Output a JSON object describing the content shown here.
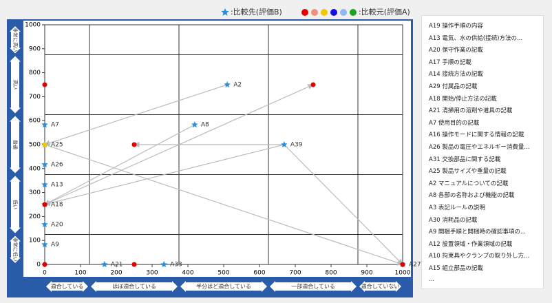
{
  "chart_data": {
    "type": "scatter",
    "xlim": [
      0,
      1000
    ],
    "ylim": [
      0,
      1000
    ],
    "xticks": [
      0,
      100,
      200,
      300,
      400,
      500,
      600,
      700,
      800,
      900,
      1000
    ],
    "yticks": [
      0,
      100,
      200,
      300,
      400,
      500,
      600,
      700,
      800,
      900,
      1000
    ],
    "bands": [
      125,
      375,
      625,
      875
    ],
    "x_band_labels": [
      "適合している",
      "ほぼ適合している",
      "半分ほど適合している",
      "一部適合している",
      "適合していない"
    ],
    "y_band_labels": [
      "非常に高い",
      "高い",
      "普通",
      "低い",
      "非常に低い"
    ],
    "series": [
      {
        "name": ":比較先(評価B)",
        "marker": "star",
        "color": "#2a8fd8",
        "labels": [
          "A2",
          "A7",
          "A8",
          "A39",
          "A25",
          "A26",
          "A13",
          "A18",
          "A20",
          "A9",
          "A21",
          "A33",
          "A27"
        ],
        "x": [
          510,
          0,
          419,
          669,
          0,
          0,
          0,
          0,
          0,
          0,
          167,
          333,
          1000
        ],
        "values": [
          750,
          583,
          583,
          500,
          500,
          417,
          333,
          250,
          167,
          83,
          0,
          0,
          0
        ]
      },
      {
        "name": ":比較元(評価A)",
        "marker": "circle",
        "legend_colors": [
          "#e00000",
          "#f0907a",
          "#f0c800",
          "#1010e0",
          "#90b8f0",
          "#20a020"
        ],
        "colors": [
          "#e00000",
          "#e00000",
          "#e00000",
          "#e00000",
          "#e00000",
          "#e00000",
          "#e00000",
          "#f0c800"
        ],
        "x": [
          0,
          750,
          250,
          0,
          1000,
          250,
          0,
          0
        ],
        "values": [
          750,
          750,
          500,
          250,
          0,
          0,
          0,
          500
        ]
      }
    ],
    "arrows": [
      {
        "from": [
          669,
          500
        ],
        "to": [
          250,
          500
        ]
      },
      {
        "from": [
          669,
          500
        ],
        "to": [
          1000,
          0
        ]
      },
      {
        "from": [
          510,
          750
        ],
        "to": [
          0,
          500
        ]
      },
      {
        "from": [
          0,
          250
        ],
        "to": [
          750,
          750
        ]
      },
      {
        "from": [
          419,
          583
        ],
        "to": [
          0,
          250
        ]
      },
      {
        "from": [
          0,
          500
        ],
        "to": [
          1000,
          0
        ]
      },
      {
        "from": [
          669,
          500
        ],
        "to": [
          0,
          250
        ]
      }
    ]
  },
  "sidebar": {
    "items": [
      "A19 操作手順の内容",
      "A13 電気、水の供給(接続)方法の...",
      "A20 保守作業の記載",
      "A17 手順の記載",
      "A14 接続方法の記載",
      "A29 付属品の記載",
      "A18 開始/停止方法の記載",
      "A21 清掃用の溶剤や道具の記載",
      "A7 使用目的の記載",
      "A16 操作モードに関する情報の記載",
      "A26 製品の電圧やエネルギー消費量...",
      "A31 交換部品に関する記載",
      "A25 製品サイズや重量の記載",
      "A2 マニュアルについての記載",
      "A8 各部の名称および機能の記載",
      "A3 表記ルールの説明",
      "A30 消耗品の記載",
      "A9 開梱手順と開梱時の確認事項の...",
      "A12 設置領域・作業領域の記載",
      "A10 拘束具やクランプの取り外し方...",
      "A15 組立部品の記載",
      "..."
    ]
  }
}
